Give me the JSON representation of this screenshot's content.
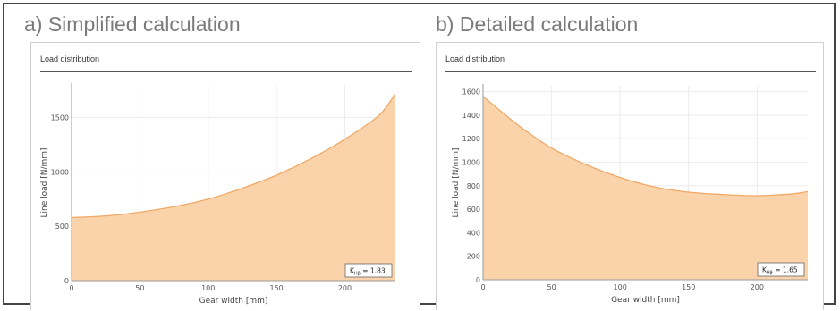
{
  "titles": {
    "a": "a) Simplified calculation",
    "b": "b) Detailed calculation"
  },
  "colors": {
    "fill": "#fbd3ab",
    "line": "#f0a865",
    "grid": "#ececec",
    "axis": "#999999"
  },
  "chart_data": [
    {
      "type": "area",
      "title": "Load distribution",
      "xlabel": "Gear width [mm]",
      "ylabel": "Line load [N/mm]",
      "xlim": [
        0,
        237
      ],
      "ylim": [
        0,
        1800
      ],
      "xticks": [
        0,
        50,
        100,
        150,
        200
      ],
      "yticks": [
        0,
        500,
        1000,
        1500
      ],
      "x": [
        0,
        25,
        50,
        75,
        100,
        125,
        150,
        175,
        200,
        225,
        237
      ],
      "values": [
        580,
        595,
        630,
        680,
        750,
        850,
        970,
        1120,
        1300,
        1520,
        1720
      ],
      "annotation_sym": "K",
      "annotation_sub": "Hβ",
      "annotation_val": " = 1.83"
    },
    {
      "type": "area",
      "title": "Load distribution",
      "xlabel": "Gear width [mm]",
      "ylabel": "Line load [N/mm]",
      "xlim": [
        0,
        237
      ],
      "ylim": [
        0,
        1650
      ],
      "xticks": [
        0,
        50,
        100,
        150,
        200
      ],
      "yticks": [
        0,
        200,
        400,
        600,
        800,
        1000,
        1200,
        1400,
        1600
      ],
      "x": [
        0,
        25,
        50,
        75,
        100,
        125,
        150,
        175,
        200,
        225,
        237
      ],
      "values": [
        1560,
        1320,
        1120,
        980,
        870,
        790,
        745,
        725,
        715,
        730,
        750
      ],
      "annotation_sym": "K",
      "annotation_sub": "Hβ",
      "annotation_val": " = 1.65"
    }
  ]
}
